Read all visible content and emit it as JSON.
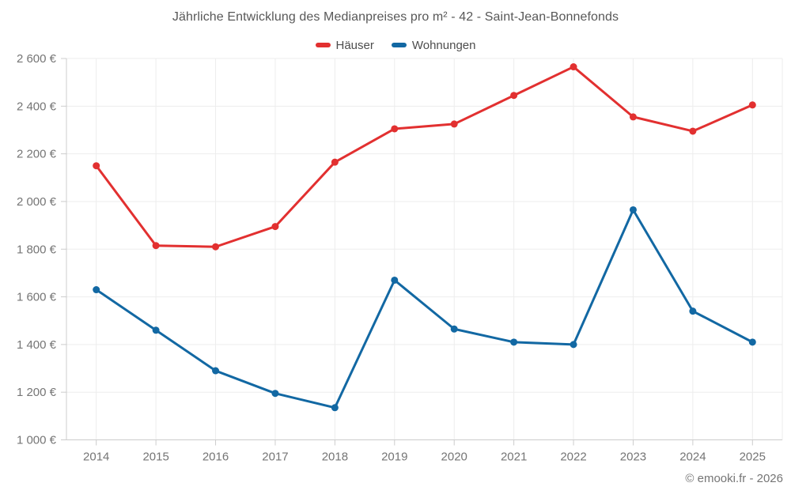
{
  "header": {
    "title": "Jährliche Entwicklung des Medianpreises pro m² - 42 - Saint-Jean-Bonnefonds"
  },
  "legend": [
    {
      "label": "Häuser",
      "color": "#e23030"
    },
    {
      "label": "Wohnungen",
      "color": "#1268a3"
    }
  ],
  "footer": {
    "credit": "© emooki.fr - 2026"
  },
  "colors": {
    "grid": "#ededed",
    "axis": "#cccccc",
    "tick_text": "#757575",
    "haeuser": "#e23030",
    "wohnungen": "#1268a3"
  },
  "chart_data": {
    "type": "line",
    "title": "Jährliche Entwicklung des Medianpreises pro m² - 42 - Saint-Jean-Bonnefonds",
    "categories": [
      "2014",
      "2015",
      "2016",
      "2017",
      "2018",
      "2019",
      "2020",
      "2021",
      "2022",
      "2023",
      "2024",
      "2025"
    ],
    "series": [
      {
        "name": "Häuser",
        "color": "#e23030",
        "values": [
          2150,
          1815,
          1810,
          1895,
          2165,
          2305,
          2325,
          2445,
          2565,
          2355,
          2295,
          2405
        ]
      },
      {
        "name": "Wohnungen",
        "color": "#1268a3",
        "values": [
          1630,
          1460,
          1290,
          1195,
          1135,
          1670,
          1465,
          1410,
          1400,
          1965,
          1540,
          1410
        ]
      }
    ],
    "xlabel": "",
    "ylabel": "",
    "ylim": [
      1000,
      2600
    ],
    "ytick_step": 200,
    "ytick_suffix": " €",
    "grid": true,
    "legend_position": "top"
  }
}
